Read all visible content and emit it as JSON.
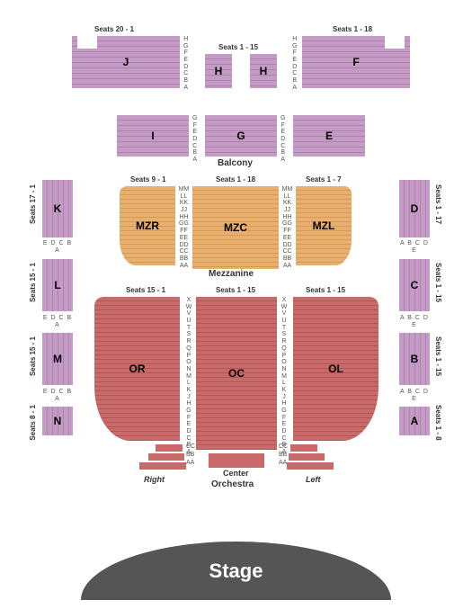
{
  "stage": {
    "label": "Stage",
    "bg": "#555555",
    "fg": "#ffffff"
  },
  "level_labels": {
    "orchestra": "Orchestra",
    "mezzanine": "Mezzanine",
    "balcony": "Balcony",
    "center": "Center",
    "right": "Right",
    "left": "Left"
  },
  "orchestra": {
    "color": "#c96a6a",
    "sections": {
      "OR": "OR",
      "OC": "OC",
      "OL": "OL"
    },
    "seat_ranges": {
      "left": "Seats 15 - 1",
      "center": "Seats 1 - 15",
      "right": "Seats 1 - 15"
    },
    "rows_center": [
      "X",
      "W",
      "V",
      "U",
      "T",
      "S",
      "R",
      "Q",
      "P",
      "O",
      "N",
      "M",
      "L",
      "K",
      "J",
      "H",
      "G",
      "F",
      "E",
      "D",
      "C",
      "B",
      "A"
    ],
    "front_rows": {
      "CC": "CC",
      "BB": "BB",
      "AA": "AA"
    }
  },
  "mezzanine": {
    "color": "#e8b070",
    "sections": {
      "MZR": "MZR",
      "MZC": "MZC",
      "MZL": "MZL"
    },
    "seat_ranges": {
      "left": "Seats 9 - 1",
      "center": "Seats 1 - 18",
      "right": "Seats 1 - 7"
    },
    "rows": [
      "MM",
      "LL",
      "KK",
      "JJ",
      "HH",
      "GG",
      "FF",
      "EE",
      "DD",
      "CC",
      "BB",
      "AA"
    ]
  },
  "balcony": {
    "color": "#c49bc4",
    "top": {
      "J": "J",
      "H": "H",
      "F": "F"
    },
    "mid": {
      "I": "I",
      "G": "G",
      "E": "E"
    },
    "left_side": {
      "K": "K",
      "L": "L",
      "M": "M",
      "N": "N"
    },
    "right_side": {
      "D": "D",
      "C": "C",
      "B": "B",
      "A": "A"
    },
    "seat_ranges": {
      "top_left": "Seats 20 - 1",
      "top_center": "Seats 1 - 15",
      "top_right": "Seats 1 - 18"
    },
    "top_rows": [
      "H",
      "G",
      "F",
      "E",
      "D",
      "C",
      "B",
      "A"
    ],
    "mid_rows": [
      "G",
      "F",
      "E",
      "D",
      "C",
      "B",
      "A"
    ],
    "side_left": {
      "K_range": "Seats 17 - 1",
      "L_range": "Seats 15 - 1",
      "M_range": "Seats 15 - 1",
      "N_range": "Seats 8 - 1",
      "cols": [
        "E",
        "D",
        "C",
        "B",
        "A"
      ]
    },
    "side_right": {
      "D_range": "Seats 1 - 17",
      "C_range": "Seats 1 - 15",
      "B_range": "Seats 1 - 15",
      "A_range": "Seats 1 - 8",
      "cols": [
        "A",
        "B",
        "C",
        "D",
        "E"
      ]
    }
  }
}
